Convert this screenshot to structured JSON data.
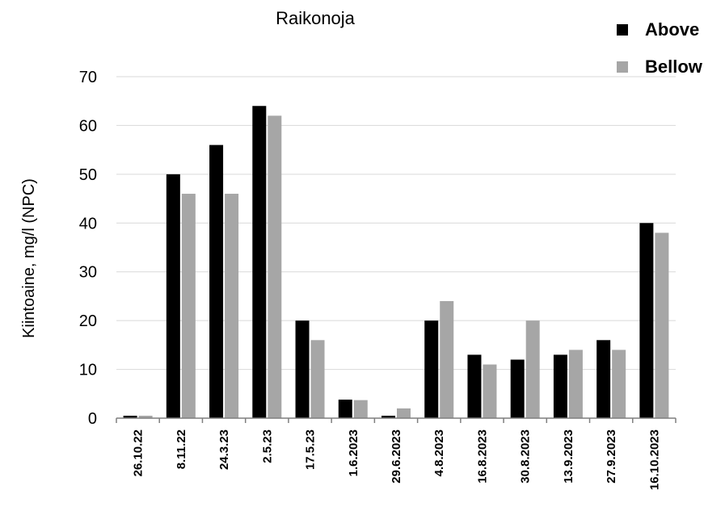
{
  "chart_data": {
    "type": "bar",
    "title": "Raikonoja",
    "xlabel": "",
    "ylabel": "Kiintoaine, mg/l (NPC)",
    "ylim": [
      0,
      70
    ],
    "yticks": [
      0,
      10,
      20,
      30,
      40,
      50,
      60,
      70
    ],
    "grid": true,
    "legend_position": "top-right",
    "categories": [
      "26.10.22",
      "8.11.22",
      "24.3.23",
      "2.5.23",
      "17.5.23",
      "1.6.2023",
      "29.6.2023",
      "4.8.2023",
      "16.8.2023",
      "30.8.2023",
      "13.9.2023",
      "27.9.2023",
      "16.10.2023"
    ],
    "series": [
      {
        "name": "Above",
        "color": "#000000",
        "values": [
          0.5,
          50,
          56,
          64,
          20,
          3.8,
          0.5,
          20,
          13,
          12,
          13,
          16,
          40
        ]
      },
      {
        "name": "Bellow",
        "color": "#a6a6a6",
        "values": [
          0.5,
          46,
          46,
          62,
          16,
          3.7,
          2,
          24,
          11,
          20,
          14,
          14,
          38
        ]
      }
    ]
  }
}
